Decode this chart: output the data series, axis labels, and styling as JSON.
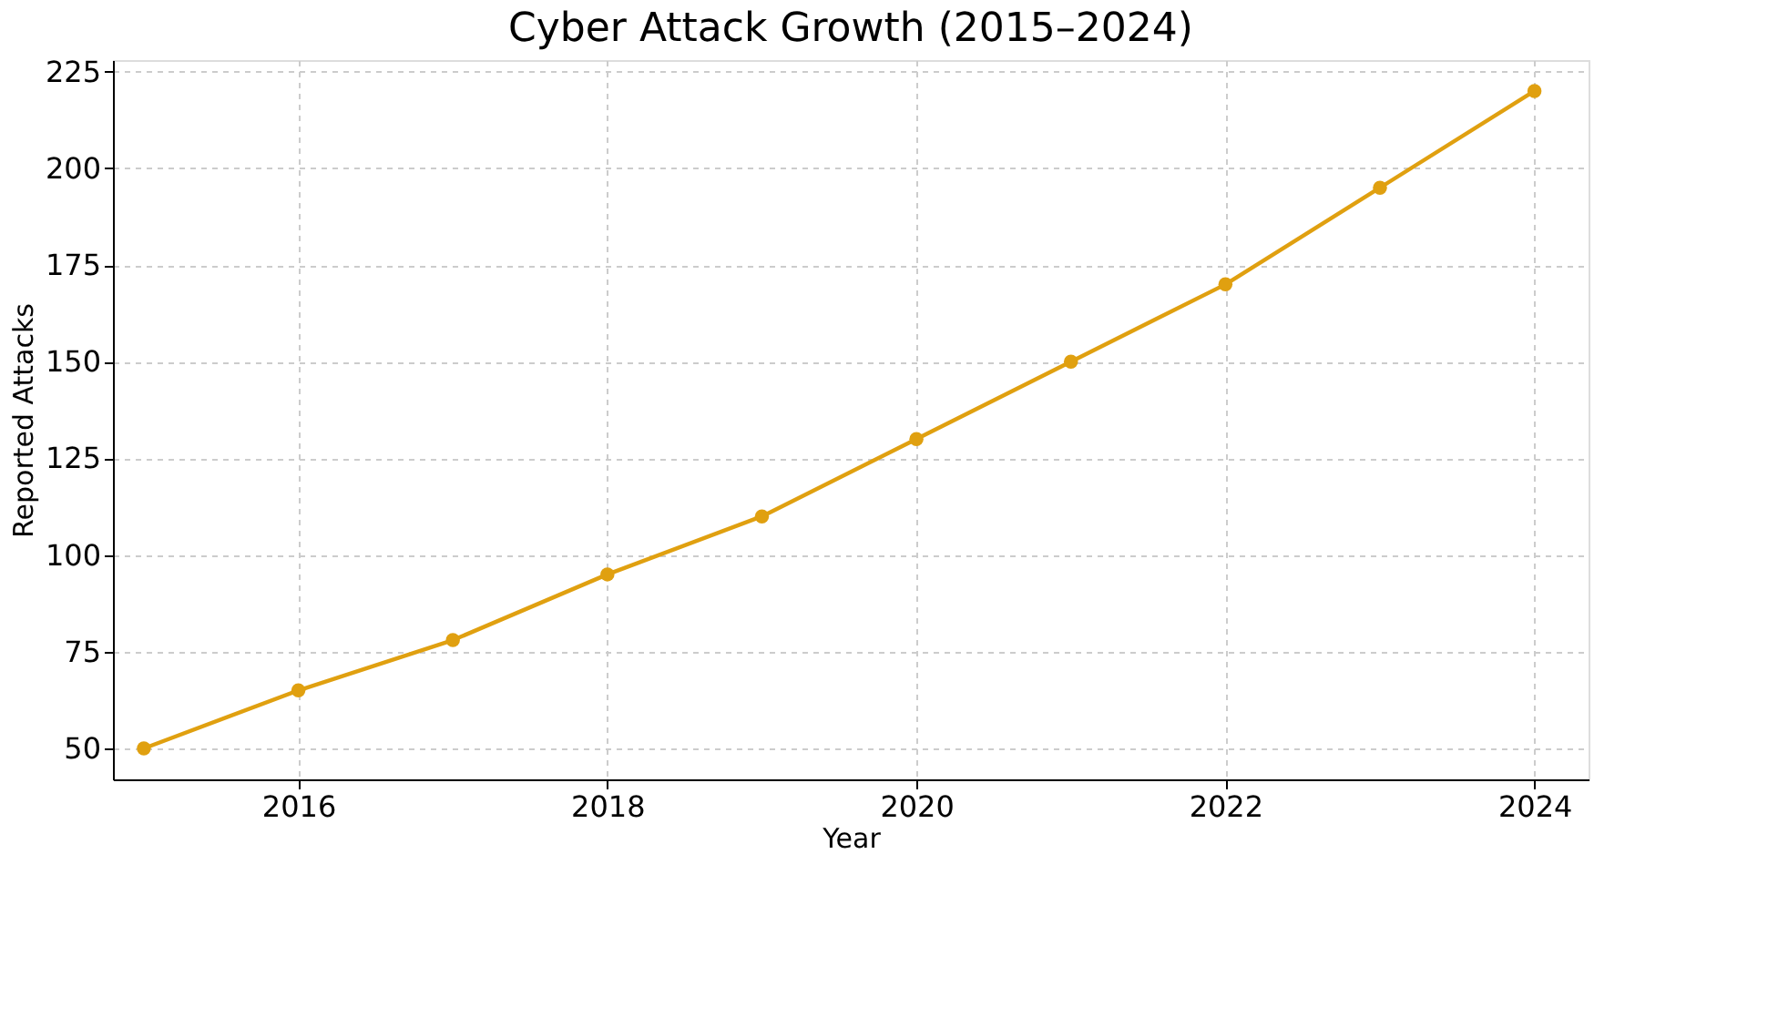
{
  "chart_data": {
    "type": "line",
    "title": "Cyber Attack Growth (2015–2024)",
    "xlabel": "Year",
    "ylabel": "Reported Attacks",
    "x": [
      2015,
      2016,
      2017,
      2018,
      2019,
      2020,
      2021,
      2022,
      2023,
      2024
    ],
    "series": [
      {
        "color": "#e0a010",
        "values": [
          50,
          65,
          78,
          95,
          110,
          130,
          150,
          170,
          195,
          220
        ]
      }
    ],
    "xlim": [
      2014.8,
      2024.35
    ],
    "xticks": [
      2016,
      2018,
      2020,
      2022,
      2024
    ],
    "ylim": [
      42,
      228
    ],
    "yticks": [
      50,
      75,
      100,
      125,
      150,
      175,
      200,
      225
    ],
    "grid": true,
    "marker": "circle",
    "line_style": "solid"
  }
}
